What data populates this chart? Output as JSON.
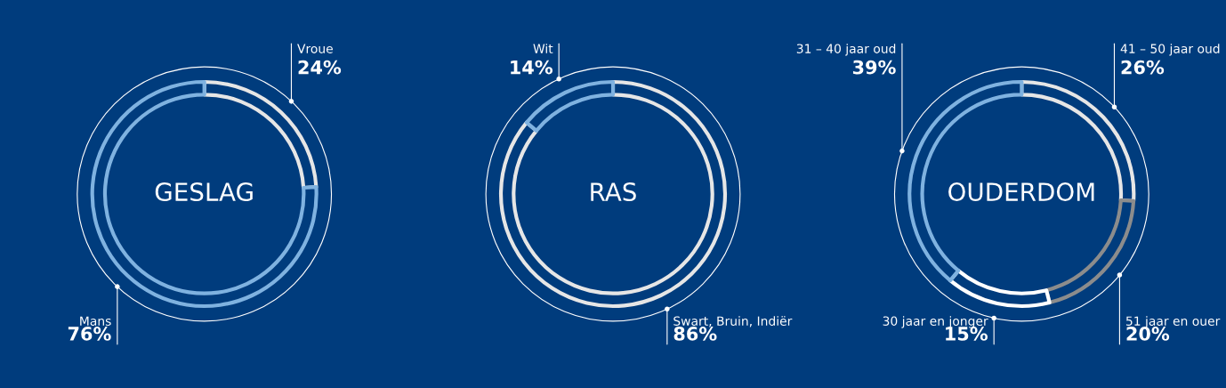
{
  "chart_data": [
    {
      "type": "donut",
      "title": "GESLAG",
      "categories": [
        "Vroue",
        "Mans"
      ],
      "values": [
        24,
        76
      ],
      "colors": [
        "#e6e6e6",
        "#7fb2e0"
      ],
      "value_labels": [
        "24%",
        "76%"
      ]
    },
    {
      "type": "donut",
      "title": "RAS",
      "categories": [
        "Swart, Bruin, Indiër",
        "Wit"
      ],
      "values": [
        86,
        14
      ],
      "colors": [
        "#e6e6e6",
        "#7fb2e0"
      ],
      "value_labels": [
        "86%",
        "14%"
      ]
    },
    {
      "type": "donut",
      "title": "OUDERDOM",
      "categories": [
        "41 – 50 jaar oud",
        "51 jaar en ouer",
        "30 jaar en jonger",
        "31 – 40 jaar oud"
      ],
      "values": [
        26,
        20,
        15,
        39
      ],
      "colors": [
        "#e6e6e6",
        "#8c8c8c",
        "#ffffff",
        "#7fb2e0"
      ],
      "value_labels": [
        "26%",
        "20%",
        "15%",
        "39%"
      ]
    }
  ]
}
